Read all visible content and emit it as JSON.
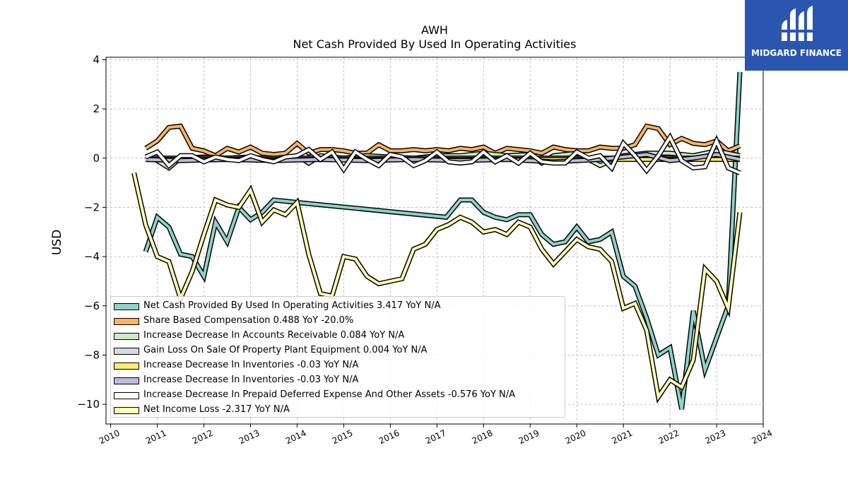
{
  "chart_data": {
    "type": "line",
    "title": "AWH",
    "subtitle": "Net Cash Provided By Used In Operating Activities",
    "ylabel": "USD",
    "xlabel": "",
    "xlim": [
      2009.9,
      2024.0
    ],
    "ylim": [
      -10.8,
      4.1
    ],
    "grid": true,
    "legend_position": "lower-left",
    "x_ticks": [
      "2010",
      "2011",
      "2012",
      "2013",
      "2014",
      "2015",
      "2016",
      "2017",
      "2018",
      "2019",
      "2020",
      "2021",
      "2022",
      "2023",
      "2024"
    ],
    "y_ticks": [
      "4",
      "2",
      "0",
      "−2",
      "−4",
      "−6",
      "−8",
      "−10"
    ],
    "series": [
      {
        "name": "Net Cash Provided By Used In Operating Activities",
        "legend_label": "Net Cash Provided By Used In Operating Activities  3.417 YoY N/A",
        "color": "#8dd3c7",
        "points": [
          [
            2010.75,
            -3.8
          ],
          [
            2011.0,
            -2.4
          ],
          [
            2011.25,
            -2.8
          ],
          [
            2011.5,
            -3.9
          ],
          [
            2011.75,
            -4.0
          ],
          [
            2012.0,
            -4.8
          ],
          [
            2012.25,
            -2.6
          ],
          [
            2012.5,
            -3.4
          ],
          [
            2012.75,
            -2.0
          ],
          [
            2013.0,
            -2.5
          ],
          [
            2013.25,
            -2.2
          ],
          [
            2013.5,
            -1.7
          ],
          [
            2014.0,
            -1.8
          ],
          [
            2017.2,
            -2.4
          ],
          [
            2017.5,
            -1.7
          ],
          [
            2017.75,
            -1.7
          ],
          [
            2018.0,
            -2.2
          ],
          [
            2018.25,
            -2.4
          ],
          [
            2018.5,
            -2.5
          ],
          [
            2018.75,
            -2.3
          ],
          [
            2019.0,
            -2.3
          ],
          [
            2019.25,
            -3.1
          ],
          [
            2019.5,
            -3.5
          ],
          [
            2019.75,
            -3.4
          ],
          [
            2020.0,
            -2.8
          ],
          [
            2020.25,
            -3.4
          ],
          [
            2020.5,
            -3.3
          ],
          [
            2020.75,
            -3.0
          ],
          [
            2021.0,
            -4.8
          ],
          [
            2021.25,
            -5.2
          ],
          [
            2021.5,
            -6.5
          ],
          [
            2021.75,
            -8.0
          ],
          [
            2022.0,
            -7.7
          ],
          [
            2022.25,
            -10.2
          ],
          [
            2022.5,
            -6.2
          ],
          [
            2022.75,
            -8.6
          ],
          [
            2023.0,
            -7.3
          ],
          [
            2023.25,
            -6.0
          ],
          [
            2023.5,
            3.5
          ]
        ]
      },
      {
        "name": "Share Based Compensation",
        "legend_label": "Share Based Compensation  0.488 YoY -20.0%",
        "color": "#fdb462",
        "points": [
          [
            2010.75,
            0.4
          ],
          [
            2011.0,
            0.7
          ],
          [
            2011.25,
            1.25
          ],
          [
            2011.5,
            1.3
          ],
          [
            2011.75,
            0.4
          ],
          [
            2012.0,
            0.3
          ],
          [
            2012.25,
            0.1
          ],
          [
            2012.5,
            0.4
          ],
          [
            2012.75,
            0.25
          ],
          [
            2013.0,
            0.45
          ],
          [
            2013.25,
            0.2
          ],
          [
            2013.5,
            0.15
          ],
          [
            2013.75,
            0.2
          ],
          [
            2014.0,
            0.6
          ],
          [
            2014.25,
            0.2
          ],
          [
            2014.5,
            0.35
          ],
          [
            2014.75,
            0.35
          ],
          [
            2015.0,
            0.3
          ],
          [
            2015.25,
            0.2
          ],
          [
            2015.5,
            0.2
          ],
          [
            2015.75,
            0.55
          ],
          [
            2016.0,
            0.3
          ],
          [
            2016.25,
            0.3
          ],
          [
            2016.5,
            0.35
          ],
          [
            2016.75,
            0.3
          ],
          [
            2017.0,
            0.35
          ],
          [
            2017.25,
            0.3
          ],
          [
            2017.5,
            0.4
          ],
          [
            2017.75,
            0.35
          ],
          [
            2018.0,
            0.45
          ],
          [
            2018.25,
            0.2
          ],
          [
            2018.5,
            0.4
          ],
          [
            2018.75,
            0.35
          ],
          [
            2019.0,
            0.3
          ],
          [
            2019.25,
            0.2
          ],
          [
            2019.5,
            0.45
          ],
          [
            2019.75,
            0.35
          ],
          [
            2020.0,
            0.3
          ],
          [
            2020.25,
            0.3
          ],
          [
            2020.5,
            0.45
          ],
          [
            2020.75,
            0.4
          ],
          [
            2021.0,
            0.4
          ],
          [
            2021.25,
            0.55
          ],
          [
            2021.5,
            1.3
          ],
          [
            2021.75,
            1.2
          ],
          [
            2022.0,
            0.55
          ],
          [
            2022.25,
            0.8
          ],
          [
            2022.5,
            0.6
          ],
          [
            2022.75,
            0.55
          ],
          [
            2023.0,
            0.7
          ],
          [
            2023.25,
            0.3
          ],
          [
            2023.5,
            0.5
          ]
        ]
      },
      {
        "name": "Increase Decrease In Accounts Receivable",
        "legend_label": "Increase Decrease In Accounts Receivable  0.084 YoY N/A",
        "color": "#ccebc5",
        "points": [
          [
            2010.75,
            0.1
          ],
          [
            2011.0,
            -0.1
          ],
          [
            2011.25,
            -0.4
          ],
          [
            2011.5,
            0.0
          ],
          [
            2012.0,
            0.05
          ],
          [
            2012.5,
            0.0
          ],
          [
            2013.0,
            0.05
          ],
          [
            2013.5,
            -0.05
          ],
          [
            2014.0,
            0.1
          ],
          [
            2014.25,
            -0.2
          ],
          [
            2014.5,
            0.1
          ],
          [
            2015.0,
            0.0
          ],
          [
            2015.5,
            0.1
          ],
          [
            2016.0,
            0.05
          ],
          [
            2016.5,
            0.0
          ],
          [
            2017.0,
            0.1
          ],
          [
            2017.5,
            0.1
          ],
          [
            2018.0,
            0.2
          ],
          [
            2018.5,
            0.1
          ],
          [
            2019.0,
            0.15
          ],
          [
            2019.25,
            -0.2
          ],
          [
            2019.5,
            0.1
          ],
          [
            2020.0,
            0.2
          ],
          [
            2020.5,
            -0.3
          ],
          [
            2021.0,
            0.1
          ],
          [
            2021.5,
            0.2
          ],
          [
            2022.0,
            0.2
          ],
          [
            2022.5,
            0.1
          ],
          [
            2023.0,
            0.3
          ],
          [
            2023.5,
            0.1
          ]
        ]
      },
      {
        "name": "Gain Loss On Sale Of Property Plant Equipment",
        "legend_label": "Gain Loss On Sale Of Property Plant Equipment  0.004 YoY N/A",
        "color": "#d9d9d9",
        "points": [
          [
            2010.75,
            0.0
          ],
          [
            2023.5,
            0.0
          ]
        ]
      },
      {
        "name": "Increase Decrease In Inventories",
        "legend_label": "Increase Decrease In Inventories  -0.03 YoY N/A",
        "color": "#ffed6f",
        "points": [
          [
            2010.75,
            -0.05
          ],
          [
            2023.5,
            -0.05
          ]
        ]
      },
      {
        "name": "Increase Decrease In Inventories",
        "legend_label": "Increase Decrease In Inventories  -0.03 YoY N/A",
        "color": "#bebada",
        "points": [
          [
            2010.75,
            -0.05
          ],
          [
            2011.5,
            -0.1
          ],
          [
            2012.5,
            -0.05
          ],
          [
            2013.5,
            -0.1
          ],
          [
            2014.5,
            -0.05
          ],
          [
            2015.5,
            -0.1
          ],
          [
            2016.5,
            -0.05
          ],
          [
            2017.5,
            -0.1
          ],
          [
            2018.5,
            -0.05
          ],
          [
            2019.5,
            -0.15
          ],
          [
            2020.5,
            -0.05
          ],
          [
            2021.5,
            0.15
          ],
          [
            2022.0,
            -0.1
          ],
          [
            2022.5,
            0.0
          ],
          [
            2023.0,
            0.15
          ],
          [
            2023.5,
            -0.05
          ]
        ]
      },
      {
        "name": "Increase Decrease In Prepaid Deferred Expense And Other Assets",
        "legend_label": "Increase Decrease In Prepaid Deferred Expense And Other Assets  -0.576 YoY N/A",
        "color": "#ffffff",
        "points": [
          [
            2010.75,
            0.05
          ],
          [
            2011.0,
            0.25
          ],
          [
            2011.25,
            -0.3
          ],
          [
            2011.5,
            0.1
          ],
          [
            2011.75,
            0.1
          ],
          [
            2012.0,
            -0.15
          ],
          [
            2012.25,
            0.05
          ],
          [
            2012.5,
            -0.05
          ],
          [
            2012.75,
            -0.1
          ],
          [
            2013.0,
            0.1
          ],
          [
            2013.25,
            -0.05
          ],
          [
            2013.5,
            -0.15
          ],
          [
            2013.75,
            0.05
          ],
          [
            2014.0,
            0.1
          ],
          [
            2014.25,
            0.35
          ],
          [
            2014.5,
            -0.05
          ],
          [
            2014.75,
            0.25
          ],
          [
            2015.0,
            -0.45
          ],
          [
            2015.25,
            0.25
          ],
          [
            2015.5,
            -0.05
          ],
          [
            2015.75,
            -0.3
          ],
          [
            2016.0,
            0.15
          ],
          [
            2016.25,
            0.05
          ],
          [
            2016.5,
            -0.3
          ],
          [
            2016.75,
            -0.1
          ],
          [
            2017.0,
            0.25
          ],
          [
            2017.25,
            -0.15
          ],
          [
            2017.5,
            -0.2
          ],
          [
            2017.75,
            -0.15
          ],
          [
            2018.0,
            0.25
          ],
          [
            2018.25,
            -0.15
          ],
          [
            2018.5,
            0.1
          ],
          [
            2018.75,
            -0.2
          ],
          [
            2019.0,
            0.2
          ],
          [
            2019.25,
            -0.15
          ],
          [
            2019.5,
            -0.2
          ],
          [
            2019.75,
            -0.2
          ],
          [
            2020.0,
            0.25
          ],
          [
            2020.25,
            0.0
          ],
          [
            2020.5,
            0.1
          ],
          [
            2020.75,
            -0.4
          ],
          [
            2021.0,
            0.6
          ],
          [
            2021.25,
            0.1
          ],
          [
            2021.5,
            -0.5
          ],
          [
            2021.75,
            0.1
          ],
          [
            2022.0,
            0.85
          ],
          [
            2022.25,
            -0.1
          ],
          [
            2022.5,
            -0.4
          ],
          [
            2022.75,
            -0.35
          ],
          [
            2023.0,
            0.7
          ],
          [
            2023.25,
            -0.4
          ],
          [
            2023.5,
            -0.6
          ]
        ]
      },
      {
        "name": "Net Income Loss",
        "legend_label": "Net Income Loss  -2.317 YoY N/A",
        "color": "#ffffb3",
        "points": [
          [
            2010.5,
            -0.6
          ],
          [
            2010.75,
            -2.7
          ],
          [
            2011.0,
            -4.0
          ],
          [
            2011.25,
            -4.2
          ],
          [
            2011.5,
            -5.7
          ],
          [
            2011.75,
            -4.6
          ],
          [
            2012.0,
            -3.1
          ],
          [
            2012.25,
            -1.7
          ],
          [
            2012.5,
            -1.9
          ],
          [
            2012.75,
            -2.0
          ],
          [
            2013.0,
            -1.3
          ],
          [
            2013.25,
            -2.6
          ],
          [
            2013.5,
            -2.1
          ],
          [
            2013.75,
            -2.3
          ],
          [
            2014.0,
            -1.8
          ],
          [
            2014.25,
            -3.9
          ],
          [
            2014.5,
            -5.5
          ],
          [
            2014.75,
            -5.6
          ],
          [
            2015.0,
            -4.0
          ],
          [
            2015.25,
            -4.1
          ],
          [
            2015.5,
            -4.8
          ],
          [
            2015.75,
            -5.1
          ],
          [
            2016.0,
            -5.0
          ],
          [
            2016.25,
            -4.9
          ],
          [
            2016.5,
            -3.7
          ],
          [
            2016.75,
            -3.5
          ],
          [
            2017.0,
            -2.9
          ],
          [
            2017.25,
            -2.7
          ],
          [
            2017.5,
            -2.4
          ],
          [
            2017.75,
            -2.6
          ],
          [
            2018.0,
            -3.0
          ],
          [
            2018.25,
            -2.9
          ],
          [
            2018.5,
            -3.1
          ],
          [
            2018.75,
            -2.6
          ],
          [
            2019.0,
            -2.8
          ],
          [
            2019.25,
            -3.7
          ],
          [
            2019.5,
            -4.3
          ],
          [
            2019.75,
            -3.8
          ],
          [
            2020.0,
            -3.3
          ],
          [
            2020.25,
            -3.6
          ],
          [
            2020.5,
            -3.7
          ],
          [
            2020.75,
            -4.2
          ],
          [
            2021.0,
            -6.1
          ],
          [
            2021.25,
            -5.9
          ],
          [
            2021.5,
            -7.0
          ],
          [
            2021.75,
            -9.7
          ],
          [
            2022.0,
            -9.0
          ],
          [
            2022.25,
            -9.3
          ],
          [
            2022.5,
            -8.2
          ],
          [
            2022.75,
            -4.5
          ],
          [
            2023.0,
            -5.0
          ],
          [
            2023.25,
            -6.1
          ],
          [
            2023.5,
            -2.2
          ]
        ]
      }
    ]
  },
  "watermark": {
    "text": "MIDGARD FINANCE",
    "background": "#2a56b0"
  }
}
